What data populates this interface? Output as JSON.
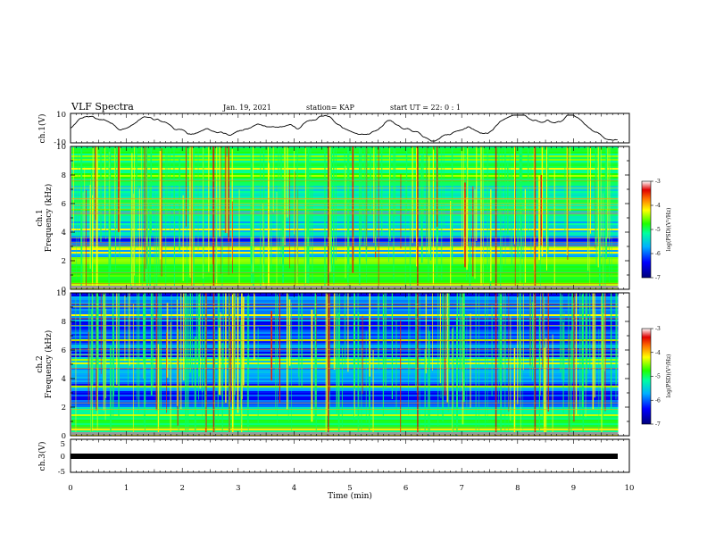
{
  "header": {
    "title": "VLF Spectra",
    "date": "Jan. 19, 2021",
    "station": "station= KAP",
    "start": "start  UT =  22: 0  : 1"
  },
  "chart_data": [
    {
      "type": "line",
      "name": "ch1-waveform",
      "ylabel": "ch.1(V)",
      "ylim": [
        -10,
        10
      ],
      "yticks": [
        "10",
        "-10"
      ],
      "xlim": [
        0,
        10
      ],
      "trace_range_min": [
        0,
        9.8
      ]
    },
    {
      "type": "heatmap",
      "name": "ch1-spectrogram",
      "ylabel": "ch.1\nFrequency (kHz)",
      "ylabel_line1": "ch.1",
      "ylabel_line2": "Frequency (kHz)",
      "ylim": [
        0,
        10
      ],
      "yticks": [
        "0",
        "2",
        "4",
        "6",
        "8",
        "10"
      ],
      "xlim": [
        0,
        10
      ],
      "colorbar": {
        "label": "log(PSD)(V²/Hz)",
        "range": [
          -7,
          -3
        ],
        "ticks": [
          "-3",
          "-4",
          "-5",
          "-6",
          "-7"
        ]
      }
    },
    {
      "type": "heatmap",
      "name": "ch2-spectrogram",
      "ylabel_line1": "ch.2",
      "ylabel_line2": "Frequency (kHz)",
      "ylim": [
        0,
        10
      ],
      "yticks": [
        "0",
        "2",
        "4",
        "6",
        "8",
        "10"
      ],
      "xlim": [
        0,
        10
      ],
      "colorbar": {
        "label": "log(PSD)(V²/Hz)",
        "range": [
          -7,
          -3
        ],
        "ticks": [
          "-3",
          "-4",
          "-5",
          "-6",
          "-7"
        ]
      }
    },
    {
      "type": "line",
      "name": "ch3-waveform",
      "ylabel": "ch.3(V)",
      "ylim": [
        -5,
        5
      ],
      "yticks": [
        "5",
        "0",
        "-5"
      ],
      "xlim": [
        0,
        10
      ],
      "trace_range_min": [
        0,
        9.8
      ],
      "trace_value_band": [
        -0.5,
        0.5
      ]
    }
  ],
  "xaxis": {
    "label": "Time  (min)",
    "ticks": [
      "0",
      "1",
      "2",
      "3",
      "4",
      "5",
      "6",
      "7",
      "8",
      "9",
      "10"
    ]
  },
  "colors": {
    "spectrum_low": "#0000a0",
    "spectrum_mid": "#00ff00",
    "spectrum_high": "#ff0000",
    "spectrum_top": "#ffffff",
    "trace": "#000000"
  }
}
